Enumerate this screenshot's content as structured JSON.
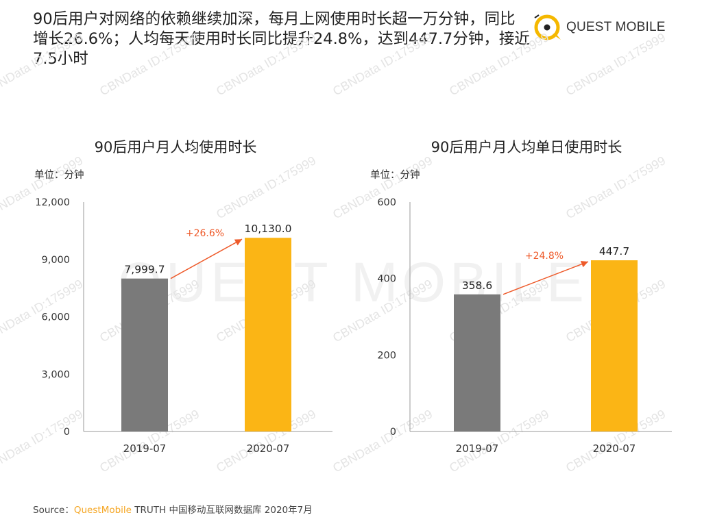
{
  "headline": "90后用户对网络的依赖继续加深，每月上网使用时长超一万分钟，同比增长26.6%；人均每天使用时长同比提升24.8%，达到447.7分钟，接近7.5小时",
  "brand": {
    "name": "QUEST MOBILE",
    "accent": "#f5b800"
  },
  "watermark": {
    "text": "CBNData ID:175999",
    "big": "QUEST MOBILE"
  },
  "source": {
    "label": "Source：",
    "brand": "QuestMobile",
    "rest": " TRUTH 中国移动互联网数据库 2020年7月"
  },
  "colors": {
    "bar_2019": "#7a7a7a",
    "bar_2020": "#fbb515",
    "arrow": "#ee5a2a",
    "growth_text": "#ee5a2a"
  },
  "chart_data": [
    {
      "type": "bar",
      "title": "90后用户月人均使用时长",
      "unit_label": "单位：分钟",
      "categories": [
        "2019-07",
        "2020-07"
      ],
      "values": [
        7999.7,
        10130.0
      ],
      "value_labels": [
        "7,999.7",
        "10,130.0"
      ],
      "ylim": [
        0,
        12000
      ],
      "yticks": [
        0,
        3000,
        6000,
        9000,
        12000
      ],
      "ytick_labels": [
        "0",
        "3,000",
        "6,000",
        "9,000",
        "12,000"
      ],
      "growth_label": "+26.6%",
      "grid": false
    },
    {
      "type": "bar",
      "title": "90后用户月人均单日使用时长",
      "unit_label": "单位：分钟",
      "categories": [
        "2019-07",
        "2020-07"
      ],
      "values": [
        358.6,
        447.7
      ],
      "value_labels": [
        "358.6",
        "447.7"
      ],
      "ylim": [
        0,
        600
      ],
      "yticks": [
        0,
        200,
        400,
        600
      ],
      "ytick_labels": [
        "0",
        "200",
        "400",
        "600"
      ],
      "growth_label": "+24.8%",
      "grid": false
    }
  ]
}
